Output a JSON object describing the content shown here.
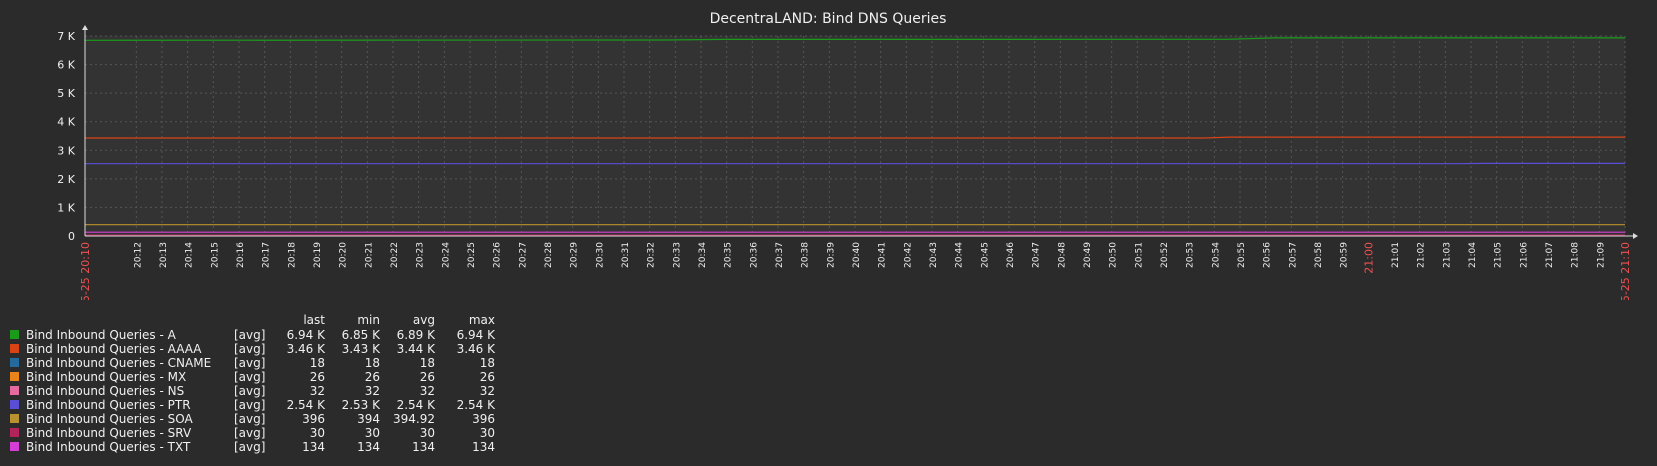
{
  "chart_data": {
    "type": "line",
    "title": "DecentraLAND: Bind DNS Queries",
    "xlabel": "",
    "ylabel": "",
    "ylim": [
      0,
      7000
    ],
    "yticks": [
      {
        "value": 0,
        "label": "0"
      },
      {
        "value": 1000,
        "label": "1 K"
      },
      {
        "value": 2000,
        "label": "2 K"
      },
      {
        "value": 3000,
        "label": "3 K"
      },
      {
        "value": 4000,
        "label": "4 K"
      },
      {
        "value": 5000,
        "label": "5 K"
      },
      {
        "value": 6000,
        "label": "6 K"
      },
      {
        "value": 7000,
        "label": "7 K"
      }
    ],
    "x_start_label": "05-25 20:10",
    "x_end_label": "05-25 21:10",
    "x_ticks": [
      "20:12",
      "20:13",
      "20:14",
      "20:15",
      "20:16",
      "20:17",
      "20:18",
      "20:19",
      "20:20",
      "20:21",
      "20:22",
      "20:23",
      "20:24",
      "20:25",
      "20:26",
      "20:27",
      "20:28",
      "20:29",
      "20:30",
      "20:31",
      "20:32",
      "20:33",
      "20:34",
      "20:35",
      "20:36",
      "20:37",
      "20:38",
      "20:39",
      "20:40",
      "20:41",
      "20:42",
      "20:43",
      "20:44",
      "20:45",
      "20:46",
      "20:47",
      "20:48",
      "20:49",
      "20:50",
      "20:51",
      "20:52",
      "20:53",
      "20:54",
      "20:55",
      "20:56",
      "20:57",
      "20:58",
      "20:59",
      "21:00",
      "21:01",
      "21:02",
      "21:03",
      "21:04",
      "21:05",
      "21:06",
      "21:07",
      "21:08",
      "21:09",
      "21:10"
    ],
    "x_tick_highlight": [
      "21:00"
    ],
    "x_range_minutes": [
      0,
      60
    ],
    "series": [
      {
        "name": "Bind Inbound Queries - A",
        "color": "#1a9b1a",
        "function": "[avg]",
        "last": "6.94 K",
        "min": "6.85 K",
        "avg": "6.89 K",
        "max": "6.94 K",
        "points": [
          [
            0,
            6850
          ],
          [
            22.6,
            6860
          ],
          [
            24.8,
            6880
          ],
          [
            44.5,
            6885
          ],
          [
            46.3,
            6935
          ],
          [
            60,
            6935
          ]
        ]
      },
      {
        "name": "Bind Inbound Queries - AAAA",
        "color": "#d84315",
        "function": "[avg]",
        "last": "3.46 K",
        "min": "3.43 K",
        "avg": "3.44 K",
        "max": "3.46 K",
        "points": [
          [
            0,
            3430
          ],
          [
            43.6,
            3430
          ],
          [
            44.6,
            3460
          ],
          [
            60,
            3460
          ]
        ]
      },
      {
        "name": "Bind Inbound Queries - CNAME",
        "color": "#256a9c",
        "function": "[avg]",
        "last": "18",
        "min": "18",
        "avg": "18",
        "max": "18",
        "points": [
          [
            0,
            18
          ],
          [
            60,
            18
          ]
        ]
      },
      {
        "name": "Bind Inbound Queries - MX",
        "color": "#e8841a",
        "function": "[avg]",
        "last": "26",
        "min": "26",
        "avg": "26",
        "max": "26",
        "points": [
          [
            0,
            26
          ],
          [
            60,
            26
          ]
        ]
      },
      {
        "name": "Bind Inbound Queries - NS",
        "color": "#e66aa0",
        "function": "[avg]",
        "last": "32",
        "min": "32",
        "avg": "32",
        "max": "32",
        "points": [
          [
            0,
            32
          ],
          [
            60,
            32
          ]
        ]
      },
      {
        "name": "Bind Inbound Queries - PTR",
        "color": "#5a4ed6",
        "function": "[avg]",
        "last": "2.54 K",
        "min": "2.53 K",
        "avg": "2.54 K",
        "max": "2.54 K",
        "points": [
          [
            0,
            2530
          ],
          [
            53.5,
            2530
          ],
          [
            54.5,
            2540
          ],
          [
            60,
            2540
          ]
        ]
      },
      {
        "name": "Bind Inbound Queries - SOA",
        "color": "#b8922e",
        "function": "[avg]",
        "last": "396",
        "min": "394",
        "avg": "394.92",
        "max": "396",
        "points": [
          [
            0,
            394
          ],
          [
            60,
            396
          ]
        ]
      },
      {
        "name": "Bind Inbound Queries - SRV",
        "color": "#b0245a",
        "function": "[avg]",
        "last": "30",
        "min": "30",
        "avg": "30",
        "max": "30",
        "points": [
          [
            0,
            30
          ],
          [
            60,
            30
          ]
        ]
      },
      {
        "name": "Bind Inbound Queries - TXT",
        "color": "#d43ed4",
        "function": "[avg]",
        "last": "134",
        "min": "134",
        "avg": "134",
        "max": "134",
        "points": [
          [
            0,
            134
          ],
          [
            60,
            134
          ]
        ]
      }
    ]
  },
  "legend": {
    "headers": {
      "last": "last",
      "min": "min",
      "avg": "avg",
      "max": "max"
    }
  },
  "colors": {
    "background": "#2b2b2b",
    "plot_bg": "#333333",
    "grid": "#555555",
    "highlight_tick": "#f05050"
  }
}
